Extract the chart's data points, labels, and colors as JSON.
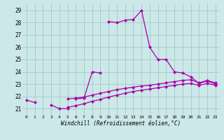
{
  "xlabel": "Windchill (Refroidissement éolien,°C)",
  "bg_color": "#cce8e8",
  "grid_color": "#aacccc",
  "line_color": "#aa00aa",
  "ylim": [
    20.5,
    29.5
  ],
  "xlim": [
    -0.5,
    23.5
  ],
  "yticks": [
    21,
    22,
    23,
    24,
    25,
    26,
    27,
    28,
    29
  ],
  "xticks": [
    0,
    1,
    2,
    3,
    4,
    5,
    6,
    7,
    8,
    9,
    10,
    11,
    12,
    13,
    14,
    15,
    16,
    17,
    18,
    19,
    20,
    21,
    22,
    23
  ],
  "y_top": [
    21.7,
    21.5,
    null,
    21.3,
    21.0,
    21.0,
    null,
    null,
    null,
    null,
    28.1,
    28.0,
    28.2,
    28.25,
    29.0,
    26.0,
    25.0,
    25.0,
    24.0,
    23.9,
    23.6,
    23.05,
    23.25,
    23.0
  ],
  "y_mid": [
    null,
    null,
    null,
    null,
    null,
    null,
    21.8,
    21.85,
    24.0,
    23.9,
    null,
    null,
    null,
    null,
    null,
    null,
    null,
    null,
    null,
    null,
    null,
    null,
    null,
    null
  ],
  "y_low1": [
    null,
    null,
    null,
    null,
    null,
    21.8,
    21.85,
    21.95,
    22.1,
    22.25,
    22.4,
    22.55,
    22.65,
    22.75,
    22.85,
    22.9,
    23.0,
    23.1,
    23.2,
    23.3,
    23.35,
    23.1,
    23.3,
    23.1
  ],
  "y_low2": [
    null,
    null,
    null,
    null,
    null,
    21.1,
    21.25,
    21.4,
    21.6,
    21.75,
    21.95,
    22.1,
    22.25,
    22.4,
    22.5,
    22.6,
    22.7,
    22.8,
    22.9,
    23.0,
    23.05,
    22.9,
    23.05,
    22.9
  ]
}
